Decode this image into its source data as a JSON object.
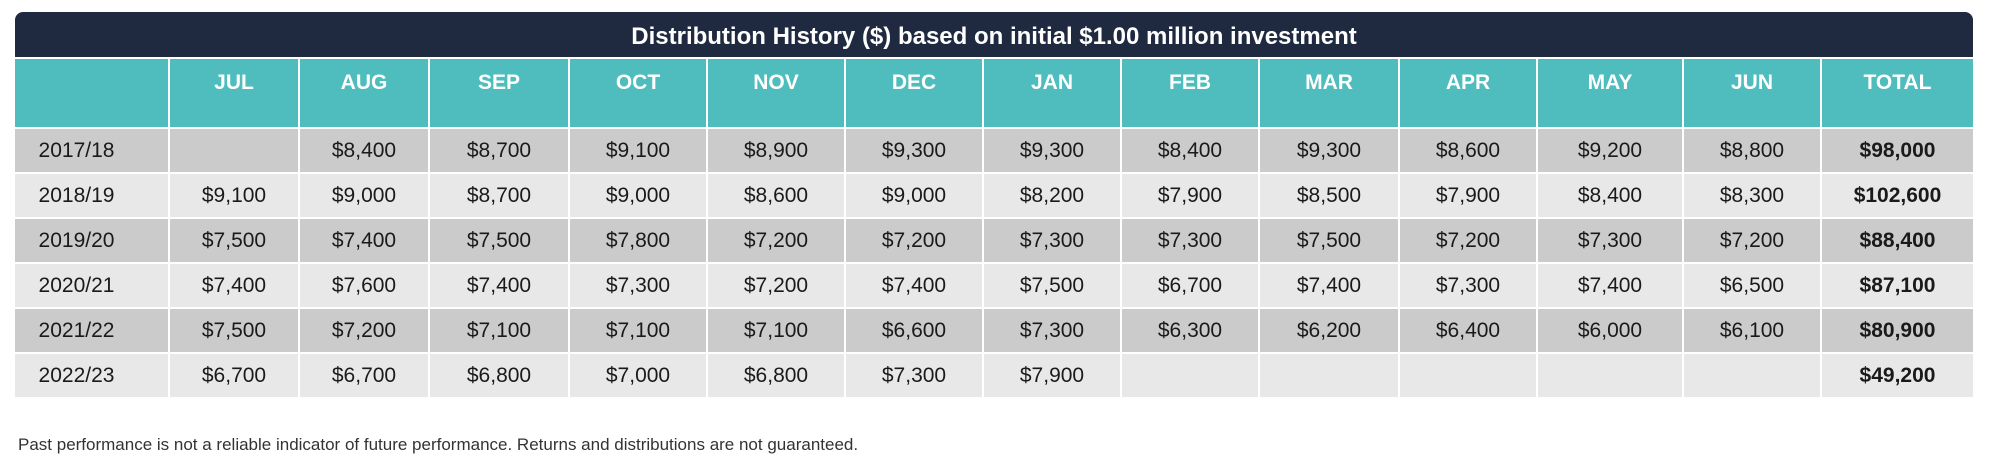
{
  "title": "Distribution History ($) based on initial $1.00 million investment",
  "header": {
    "corner": "",
    "months": [
      "JUL",
      "AUG",
      "SEP",
      "OCT",
      "NOV",
      "DEC",
      "JAN",
      "FEB",
      "MAR",
      "APR",
      "MAY",
      "JUN"
    ],
    "total_label": "TOTAL"
  },
  "rows": [
    {
      "year": "2017/18",
      "values": [
        "",
        "$8,400",
        "$8,700",
        "$9,100",
        "$8,900",
        "$9,300",
        "$9,300",
        "$8,400",
        "$9,300",
        "$8,600",
        "$9,200",
        "$8,800"
      ],
      "total": "$98,000"
    },
    {
      "year": "2018/19",
      "values": [
        "$9,100",
        "$9,000",
        "$8,700",
        "$9,000",
        "$8,600",
        "$9,000",
        "$8,200",
        "$7,900",
        "$8,500",
        "$7,900",
        "$8,400",
        "$8,300"
      ],
      "total": "$102,600"
    },
    {
      "year": "2019/20",
      "values": [
        "$7,500",
        "$7,400",
        "$7,500",
        "$7,800",
        "$7,200",
        "$7,200",
        "$7,300",
        "$7,300",
        "$7,500",
        "$7,200",
        "$7,300",
        "$7,200"
      ],
      "total": "$88,400"
    },
    {
      "year": "2020/21",
      "values": [
        "$7,400",
        "$7,600",
        "$7,400",
        "$7,300",
        "$7,200",
        "$7,400",
        "$7,500",
        "$6,700",
        "$7,400",
        "$7,300",
        "$7,400",
        "$6,500"
      ],
      "total": "$87,100"
    },
    {
      "year": "2021/22",
      "values": [
        "$7,500",
        "$7,200",
        "$7,100",
        "$7,100",
        "$7,100",
        "$6,600",
        "$7,300",
        "$6,300",
        "$6,200",
        "$6,400",
        "$6,000",
        "$6,100"
      ],
      "total": "$80,900"
    },
    {
      "year": "2022/23",
      "values": [
        "$6,700",
        "$6,700",
        "$6,800",
        "$7,000",
        "$6,800",
        "$7,300",
        "$7,900",
        "",
        "",
        "",
        "",
        ""
      ],
      "total": "$49,200"
    }
  ],
  "footnote": "Past performance is not a reliable indicator of future performance. Returns and distributions are not guaranteed.",
  "colors": {
    "title_bg": "#1f2a40",
    "header_bg": "#4fbdbd",
    "row_dark": "#cbcbcc",
    "row_light": "#e8e8e8"
  }
}
